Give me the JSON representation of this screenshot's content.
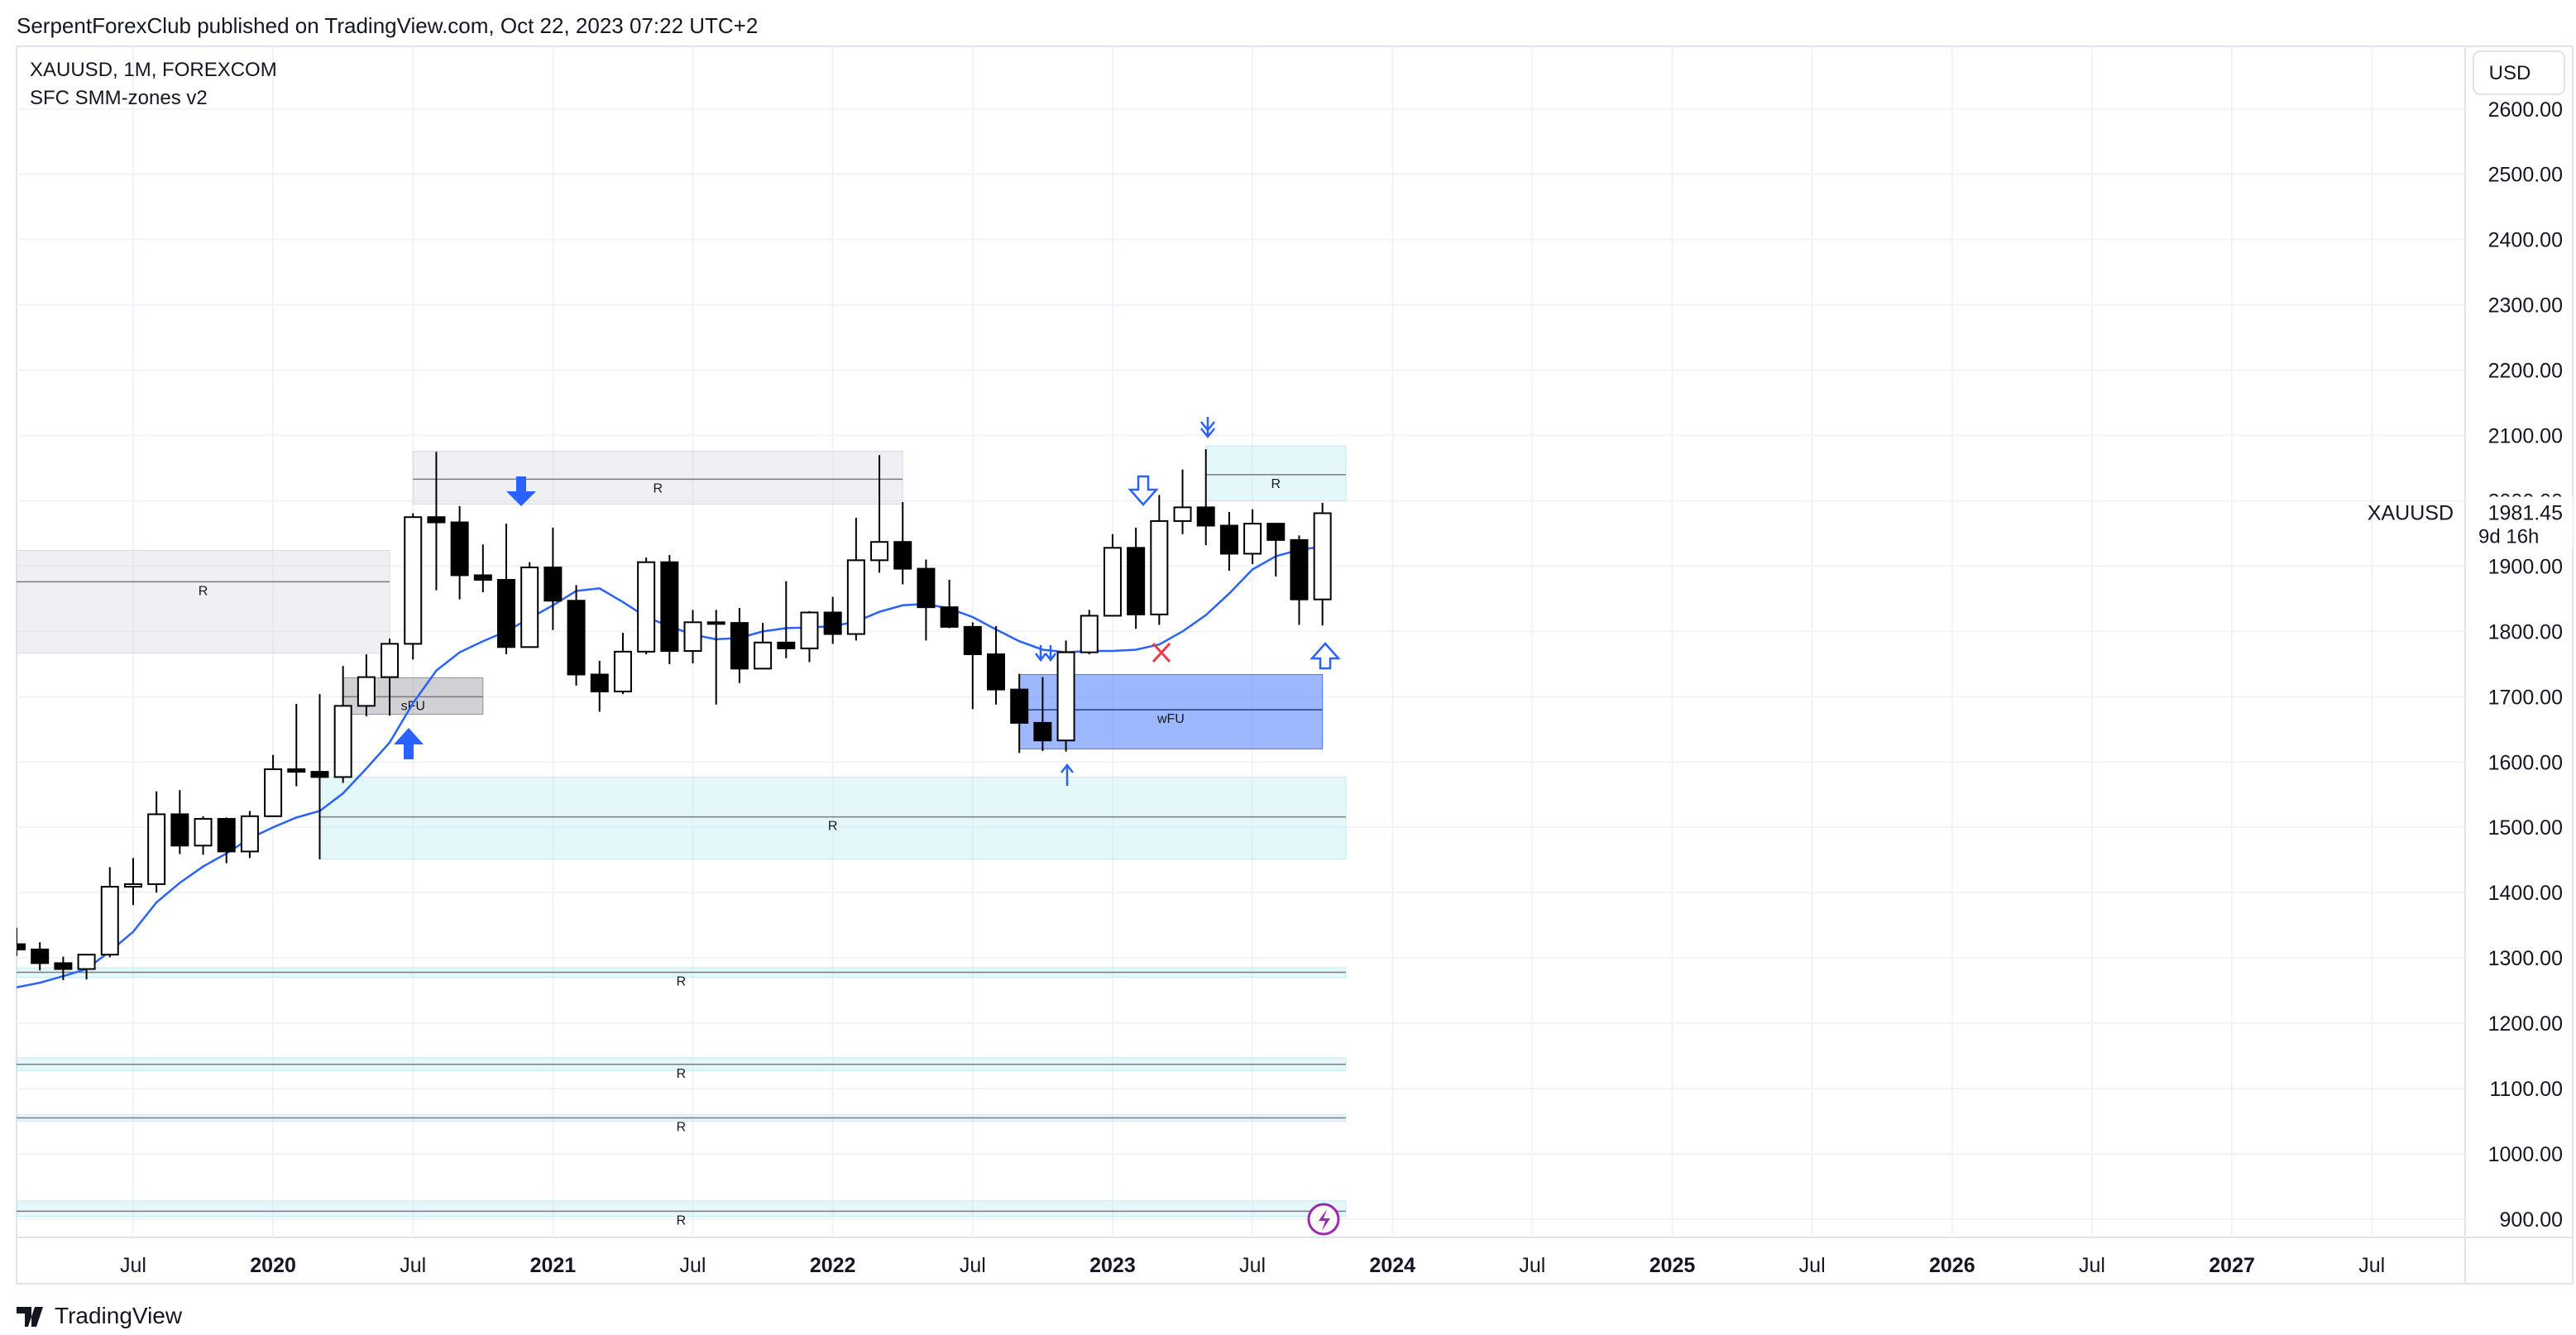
{
  "header": {
    "publisher": "SerpentForexClub published on TradingView.com, Oct 22, 2023 07:22 UTC+2",
    "symbol": "XAUUSD, 1M, FOREXCOM",
    "indicator": "SFC SMM-zones v2",
    "currency": "USD",
    "brand": "TradingView"
  },
  "chart_data": {
    "type": "candlestick",
    "x": [
      "2019-02",
      "2019-03",
      "2019-04",
      "2019-05",
      "2019-06",
      "2019-07",
      "2019-08",
      "2019-09",
      "2019-10",
      "2019-11",
      "2019-12",
      "2020-01",
      "2020-02",
      "2020-03",
      "2020-04",
      "2020-05",
      "2020-06",
      "2020-07",
      "2020-08",
      "2020-09",
      "2020-10",
      "2020-11",
      "2020-12",
      "2021-01",
      "2021-02",
      "2021-03",
      "2021-04",
      "2021-05",
      "2021-06",
      "2021-07",
      "2021-08",
      "2021-09",
      "2021-10",
      "2021-11",
      "2021-12",
      "2022-01",
      "2022-02",
      "2022-03",
      "2022-04",
      "2022-05",
      "2022-06",
      "2022-07",
      "2022-08",
      "2022-09",
      "2022-10",
      "2022-11",
      "2022-12",
      "2023-01",
      "2023-02",
      "2023-03",
      "2023-04",
      "2023-05",
      "2023-06",
      "2023-07",
      "2023-08",
      "2023-09",
      "2023-10"
    ],
    "open": [
      1321,
      1313,
      1292,
      1283,
      1305,
      1409,
      1413,
      1520,
      1472,
      1513,
      1463,
      1517,
      1589,
      1585,
      1577,
      1686,
      1730,
      1781,
      1975,
      1967,
      1886,
      1879,
      1776,
      1898,
      1847,
      1734,
      1708,
      1769,
      1906,
      1770,
      1814,
      1813,
      1743,
      1783,
      1774,
      1829,
      1796,
      1909,
      1937,
      1896,
      1837,
      1807,
      1765,
      1711,
      1660,
      1633,
      1768,
      1824,
      1928,
      1826,
      1969,
      1990,
      1962,
      1919,
      1965,
      1940,
      1849
    ],
    "high": [
      1346,
      1324,
      1302,
      1306,
      1439,
      1453,
      1555,
      1557,
      1517,
      1515,
      1525,
      1611,
      1689,
      1704,
      1747,
      1765,
      1789,
      1981,
      2075,
      1992,
      1933,
      1965,
      1906,
      1959,
      1871,
      1755,
      1798,
      1913,
      1917,
      1833,
      1833,
      1836,
      1813,
      1877,
      1831,
      1853,
      1974,
      2070,
      1998,
      1910,
      1879,
      1814,
      1808,
      1735,
      1730,
      1786,
      1833,
      1949,
      1959,
      2009,
      2048,
      2079,
      1983,
      1987,
      1966,
      1947,
      1997
    ],
    "low": [
      1303,
      1281,
      1266,
      1267,
      1301,
      1381,
      1400,
      1459,
      1458,
      1445,
      1453,
      1517,
      1563,
      1451,
      1568,
      1670,
      1671,
      1757,
      1863,
      1849,
      1860,
      1765,
      1775,
      1802,
      1717,
      1677,
      1704,
      1765,
      1750,
      1751,
      1688,
      1721,
      1746,
      1759,
      1753,
      1781,
      1786,
      1890,
      1872,
      1786,
      1805,
      1681,
      1688,
      1614,
      1617,
      1616,
      1765,
      1823,
      1804,
      1810,
      1949,
      1932,
      1893,
      1903,
      1884,
      1810,
      1809
    ],
    "close": [
      1313,
      1292,
      1283,
      1305,
      1409,
      1413,
      1520,
      1472,
      1513,
      1463,
      1517,
      1589,
      1585,
      1577,
      1686,
      1730,
      1781,
      1975,
      1967,
      1886,
      1879,
      1776,
      1898,
      1847,
      1734,
      1708,
      1769,
      1906,
      1770,
      1814,
      1813,
      1743,
      1783,
      1774,
      1829,
      1796,
      1909,
      1937,
      1896,
      1837,
      1807,
      1765,
      1711,
      1660,
      1633,
      1768,
      1824,
      1928,
      1826,
      1969,
      1990,
      1962,
      1919,
      1965,
      1940,
      1849,
      1981
    ],
    "up_color": "#ffffff",
    "down_color": "#000000",
    "wick_color": "#000000",
    "ma": {
      "color": "#2962ff",
      "values": [
        1255,
        1262,
        1272,
        1283,
        1310,
        1340,
        1385,
        1415,
        1440,
        1460,
        1483,
        1500,
        1515,
        1525,
        1552,
        1590,
        1630,
        1690,
        1740,
        1768,
        1785,
        1800,
        1820,
        1840,
        1862,
        1866,
        1845,
        1822,
        1808,
        1795,
        1788,
        1790,
        1800,
        1805,
        1806,
        1808,
        1815,
        1830,
        1840,
        1842,
        1835,
        1822,
        1803,
        1785,
        1772,
        1768,
        1770,
        1770,
        1772,
        1780,
        1800,
        1825,
        1858,
        1895,
        1915,
        1925,
        1930
      ]
    },
    "zones": [
      {
        "label": "R",
        "from": "2020-03",
        "to": "2023-11",
        "top": 1577,
        "bottom": 1451,
        "line": 1516,
        "color": "#b2ebf2"
      },
      {
        "label": "wFU",
        "from": "2022-09",
        "to": "2023-10",
        "top": 1734,
        "bottom": 1620,
        "line": 1680,
        "color": "#2962ff"
      },
      {
        "label": "R",
        "from": "2023-05",
        "to": "2023-11",
        "top": 2084,
        "bottom": 2000,
        "line": 2040,
        "color": "#b2ebf2"
      },
      {
        "label": "R",
        "from": "2020-07",
        "to": "2022-04",
        "top": 2076,
        "bottom": 1995,
        "line": 2033,
        "color": "#d1d4dc"
      },
      {
        "label": "R",
        "from": "2019-02",
        "to": "2020-06",
        "top": 1924,
        "bottom": 1767,
        "line": 1876,
        "color": "#d1d4dc"
      },
      {
        "label": "sFU",
        "from": "2020-04",
        "to": "2020-10",
        "top": 1729,
        "bottom": 1673,
        "line": 1700,
        "color": "#787b86"
      },
      {
        "label": "R",
        "from": "2019-02",
        "to": "2023-11",
        "top": 1285,
        "bottom": 1270,
        "line": 1278,
        "color": "#b2ebf2"
      },
      {
        "label": "R",
        "from": "2019-02",
        "to": "2023-11",
        "top": 1147,
        "bottom": 1127,
        "line": 1137,
        "color": "#b2ebf2"
      },
      {
        "label": "R",
        "from": "2019-02",
        "to": "2023-11",
        "top": 1060,
        "bottom": 1050,
        "line": 1055,
        "color": "#b2ebf2"
      },
      {
        "label": "R",
        "from": "2019-02",
        "to": "2023-11",
        "top": 928,
        "bottom": 904,
        "line": 912,
        "color": "#b2ebf2"
      }
    ],
    "xlim": [
      "2019-02",
      "2027-11"
    ],
    "xticks": [
      {
        "value": "2019-07",
        "label": "Jul"
      },
      {
        "value": "2020-01",
        "label": "2020"
      },
      {
        "value": "2020-07",
        "label": "Jul"
      },
      {
        "value": "2021-01",
        "label": "2021"
      },
      {
        "value": "2021-07",
        "label": "Jul"
      },
      {
        "value": "2022-01",
        "label": "2022"
      },
      {
        "value": "2022-07",
        "label": "Jul"
      },
      {
        "value": "2023-01",
        "label": "2023"
      },
      {
        "value": "2023-07",
        "label": "Jul"
      },
      {
        "value": "2024-01",
        "label": "2024"
      },
      {
        "value": "2024-07",
        "label": "Jul"
      },
      {
        "value": "2025-01",
        "label": "2025"
      },
      {
        "value": "2025-07",
        "label": "Jul"
      },
      {
        "value": "2026-01",
        "label": "2026"
      },
      {
        "value": "2026-07",
        "label": "Jul"
      },
      {
        "value": "2027-01",
        "label": "2027"
      },
      {
        "value": "2027-07",
        "label": "Jul"
      }
    ],
    "ylim": [
      872,
      2696
    ],
    "yticks": [
      {
        "value": 900,
        "label": "900.00"
      },
      {
        "value": 1000,
        "label": "1000.00"
      },
      {
        "value": 1100,
        "label": "1100.00"
      },
      {
        "value": 1200,
        "label": "1200.00"
      },
      {
        "value": 1300,
        "label": "1300.00"
      },
      {
        "value": 1400,
        "label": "1400.00"
      },
      {
        "value": 1500,
        "label": "1500.00"
      },
      {
        "value": 1600,
        "label": "1600.00"
      },
      {
        "value": 1700,
        "label": "1700.00"
      },
      {
        "value": 1800,
        "label": "1800.00"
      },
      {
        "value": 1900,
        "label": "1900.00"
      },
      {
        "value": 2000,
        "label": "2000.00"
      },
      {
        "value": 2100,
        "label": "2100.00"
      },
      {
        "value": 2200,
        "label": "2200.00"
      },
      {
        "value": 2300,
        "label": "2300.00"
      },
      {
        "value": 2400,
        "label": "2400.00"
      },
      {
        "value": 2500,
        "label": "2500.00"
      },
      {
        "value": 2600,
        "label": "2600.00"
      }
    ],
    "grid": true,
    "last_price": {
      "symbol": "XAUUSD",
      "price": "1981.45",
      "countdown": "9d 16h"
    }
  }
}
